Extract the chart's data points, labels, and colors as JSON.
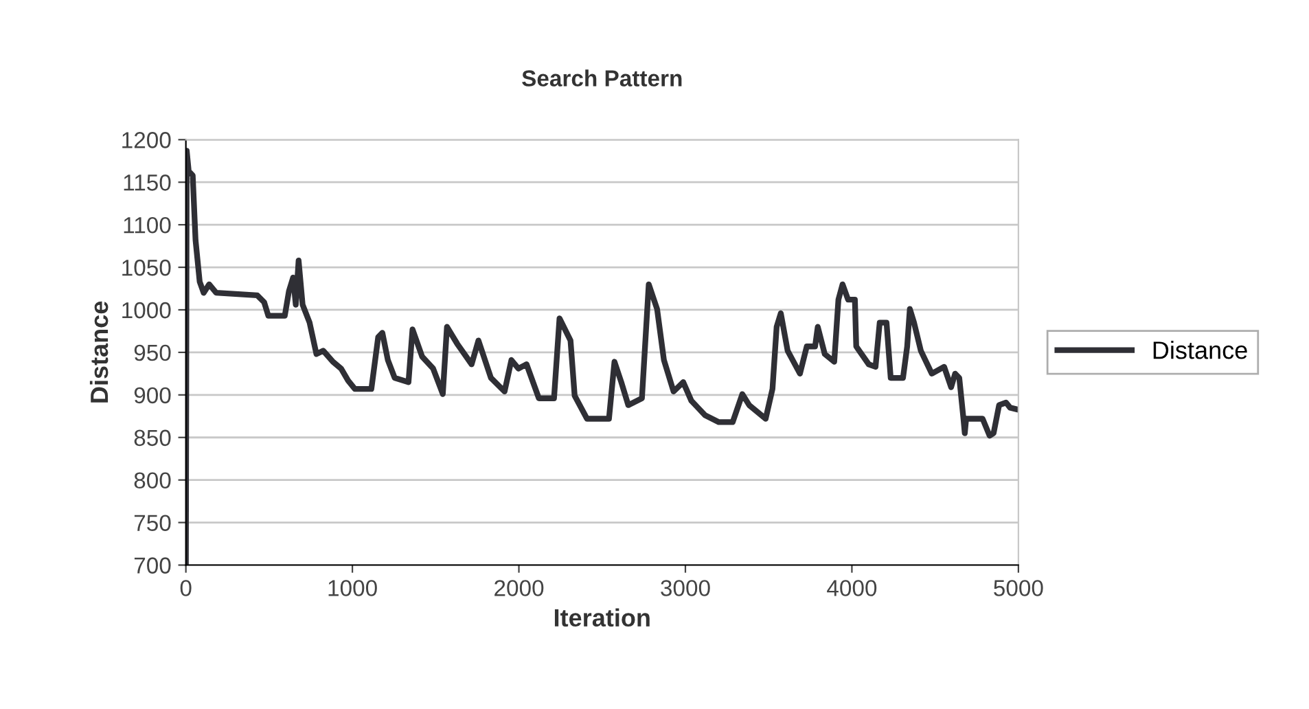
{
  "chart_data": {
    "type": "line",
    "title": "Search Pattern",
    "xlabel": "Iteration",
    "ylabel": "Distance",
    "xlim": [
      0,
      5000
    ],
    "xticks": [
      0,
      1000,
      2000,
      3000,
      4000,
      5000
    ],
    "ylim": [
      700,
      1200
    ],
    "yticks": [
      700,
      750,
      800,
      850,
      900,
      950,
      1000,
      1050,
      1100,
      1150,
      1200
    ],
    "grid": "y",
    "legend": "right",
    "line_style": "solid",
    "marker": "none",
    "series": [
      {
        "name": "Distance",
        "color": "#2f2f35",
        "x": [
          0,
          5,
          17,
          41,
          58,
          83,
          107,
          140,
          182,
          429,
          470,
          495,
          594,
          619,
          644,
          660,
          677,
          701,
          743,
          784,
          825,
          883,
          932,
          974,
          1015,
          1114,
          1155,
          1180,
          1213,
          1254,
          1337,
          1361,
          1419,
          1485,
          1543,
          1568,
          1630,
          1716,
          1757,
          1832,
          1914,
          1955,
          1997,
          2046,
          2120,
          2211,
          2244,
          2310,
          2335,
          2409,
          2541,
          2574,
          2615,
          2657,
          2739,
          2780,
          2830,
          2871,
          2929,
          2987,
          3036,
          3119,
          3201,
          3284,
          3342,
          3383,
          3482,
          3523,
          3548,
          3573,
          3614,
          3688,
          3729,
          3779,
          3795,
          3837,
          3894,
          3919,
          3944,
          3977,
          4018,
          4026,
          4101,
          4142,
          4167,
          4208,
          4233,
          4307,
          4332,
          4348,
          4373,
          4414,
          4480,
          4554,
          4596,
          4620,
          4645,
          4670,
          4678,
          4686,
          4728,
          4785,
          4827,
          4851,
          4884,
          4926,
          4950,
          4992
        ],
        "values": [
          700,
          1187,
          1163,
          1158,
          1082,
          1033,
          1020,
          1030,
          1020,
          1017,
          1009,
          993,
          993,
          1022,
          1038,
          1006,
          1058,
          1006,
          985,
          948,
          952,
          939,
          931,
          917,
          907,
          907,
          968,
          973,
          941,
          920,
          915,
          977,
          945,
          931,
          901,
          980,
          960,
          936,
          964,
          920,
          904,
          941,
          931,
          936,
          896,
          896,
          990,
          964,
          899,
          872,
          872,
          939,
          915,
          888,
          896,
          1030,
          1001,
          941,
          904,
          915,
          893,
          876,
          868,
          868,
          901,
          888,
          872,
          907,
          980,
          996,
          952,
          925,
          957,
          957,
          980,
          948,
          939,
          1012,
          1030,
          1012,
          1012,
          957,
          936,
          933,
          985,
          985,
          920,
          920,
          957,
          1001,
          985,
          952,
          925,
          933,
          909,
          925,
          920,
          872,
          855,
          872,
          872,
          872,
          852,
          855,
          888,
          891,
          885,
          883
        ]
      }
    ]
  }
}
